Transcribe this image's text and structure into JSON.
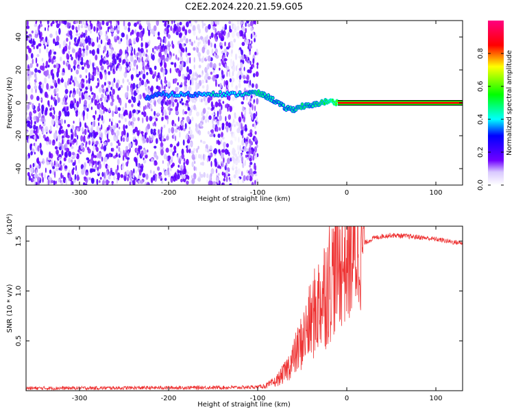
{
  "title": "C2E2.2024.220.21.59.G05",
  "chart_data": [
    {
      "type": "heatmap",
      "xlabel": "Height of straight line (km)",
      "ylabel": "Frequency (Hz)",
      "xlim": [
        -360,
        130
      ],
      "ylim": [
        -50,
        50
      ],
      "x_ticks": [
        -300,
        -200,
        -100,
        0,
        100
      ],
      "y_ticks": [
        -40,
        -20,
        0,
        20,
        40
      ],
      "colorbar": {
        "label": "Normalized spectral amplitude",
        "range": [
          0,
          1
        ],
        "ticks": [
          0.0,
          0.2,
          0.4,
          0.6,
          0.8
        ],
        "colors": [
          "#ffffff",
          "#7000ff",
          "#0000ff",
          "#00ffff",
          "#00ff00",
          "#ffff00",
          "#ff0000",
          "#ff0080"
        ]
      },
      "carrier": {
        "frequency": 0,
        "x_start": -10,
        "x_end": 130,
        "amplitude": 0.85
      },
      "signal_trace": [
        {
          "x": -225,
          "f": 3,
          "amplitude": 0.35
        },
        {
          "x": -210,
          "f": 5,
          "amplitude": 0.35
        },
        {
          "x": -190,
          "f": 5,
          "amplitude": 0.4
        },
        {
          "x": -170,
          "f": 5,
          "amplitude": 0.35
        },
        {
          "x": -150,
          "f": 6,
          "amplitude": 0.45
        },
        {
          "x": -130,
          "f": 5,
          "amplitude": 0.4
        },
        {
          "x": -110,
          "f": 6,
          "amplitude": 0.45
        },
        {
          "x": -100,
          "f": 6,
          "amplitude": 0.5
        },
        {
          "x": -90,
          "f": 4,
          "amplitude": 0.45
        },
        {
          "x": -80,
          "f": 1,
          "amplitude": 0.45
        },
        {
          "x": -70,
          "f": -3,
          "amplitude": 0.45
        },
        {
          "x": -60,
          "f": -4,
          "amplitude": 0.45
        },
        {
          "x": -50,
          "f": -2,
          "amplitude": 0.5
        },
        {
          "x": -40,
          "f": -2,
          "amplitude": 0.45
        },
        {
          "x": -30,
          "f": 0,
          "amplitude": 0.5
        },
        {
          "x": -20,
          "f": 1,
          "amplitude": 0.55
        },
        {
          "x": -10,
          "f": 0,
          "amplitude": 0.6
        }
      ]
    },
    {
      "type": "line",
      "xlabel": "Height of straight line (km)",
      "ylabel": "SNR (10 * v/v)",
      "y_multiplier": "(x10⁴)",
      "xlim": [
        -360,
        130
      ],
      "ylim": [
        0,
        16500
      ],
      "x_ticks": [
        -300,
        -200,
        -100,
        0,
        100
      ],
      "y_ticks": [
        5000,
        10000,
        15000
      ],
      "y_tick_labels": [
        "0.5",
        "1.0",
        "1.5"
      ],
      "series": [
        {
          "color": "#ee3333",
          "points": [
            [
              -360,
              250
            ],
            [
              -300,
              260
            ],
            [
              -250,
              280
            ],
            [
              -200,
              300
            ],
            [
              -150,
              320
            ],
            [
              -120,
              330
            ],
            [
              -100,
              380
            ],
            [
              -90,
              500
            ],
            [
              -80,
              900
            ],
            [
              -70,
              1800
            ],
            [
              -60,
              3200
            ],
            [
              -50,
              5000
            ],
            [
              -40,
              7000
            ],
            [
              -30,
              9000
            ],
            [
              -20,
              11000
            ],
            [
              -10,
              12500
            ],
            [
              0,
              13000
            ],
            [
              10,
              13800
            ],
            [
              20,
              14800
            ],
            [
              30,
              15300
            ],
            [
              40,
              15500
            ],
            [
              50,
              15600
            ],
            [
              60,
              15550
            ],
            [
              80,
              15400
            ],
            [
              100,
              15200
            ],
            [
              120,
              14900
            ],
            [
              130,
              14800
            ]
          ]
        }
      ]
    }
  ]
}
